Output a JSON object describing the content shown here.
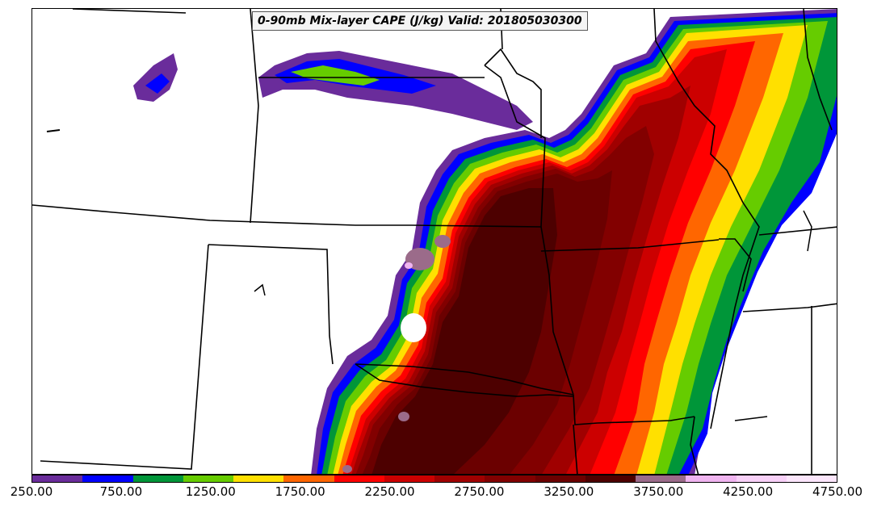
{
  "title": "0-90mb Mix-layer CAPE (J/kg) Valid: 201805030300",
  "colorbar": {
    "colors": [
      "#6a2c9b",
      "#0000ff",
      "#009639",
      "#66cc00",
      "#ffe000",
      "#ff6600",
      "#ff0000",
      "#cc0000",
      "#a00000",
      "#820000",
      "#6b0000",
      "#4d0000",
      "#9b6b8a",
      "#f0b4f0",
      "#f8d0f8",
      "#fce6fc"
    ],
    "tick_labels": [
      "250.00",
      "750.00",
      "1250.00",
      "1750.00",
      "2250.00",
      "2750.00",
      "3250.00",
      "3750.00",
      "4250.00",
      "4750.00"
    ]
  },
  "map": {
    "region": "Central United States",
    "field": "0-90mb Mix-layer CAPE",
    "units": "J/kg",
    "valid": "201805030300",
    "colors": {
      "purple": "#6a2c9b",
      "blue": "#0000ff",
      "green": "#009639",
      "lime": "#66cc00",
      "yellow": "#ffe000",
      "orange": "#ff6600",
      "red": "#ff0000",
      "darkred1": "#cc0000",
      "darkred2": "#a00000",
      "maroon": "#820000",
      "maroon2": "#6b0000",
      "darkest": "#4d0000",
      "mauve": "#9b6b8a",
      "pink": "#f0b4f0"
    }
  }
}
